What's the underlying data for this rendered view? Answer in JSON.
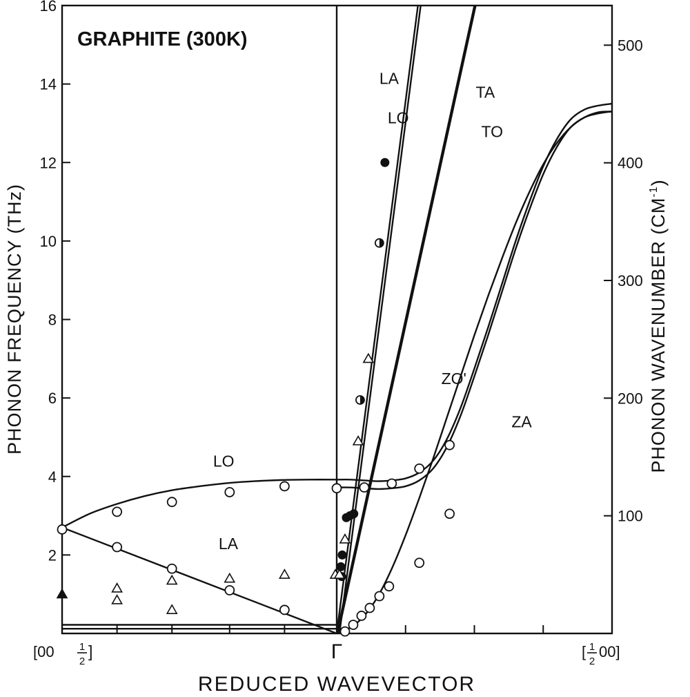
{
  "chart_data": {
    "type": "line",
    "title": "GRAPHITE (300K)",
    "xlabel": "REDUCED WAVEVECTOR",
    "ylabel": "PHONON FREQUENCY (THz)",
    "ylabel_right_main": "PHONON WAVENUMBER",
    "ylabel_right_unit": "(CM",
    "ylabel_right_sup": "-1",
    "ylabel_right_close": ")",
    "x_tick_labels": [
      "[00",
      "Γ",
      "[",
      "00]"
    ],
    "x_frac": {
      "num": "1",
      "den": "2"
    },
    "ylim": [
      0,
      16
    ],
    "y_ticks": [
      2,
      4,
      6,
      8,
      10,
      12,
      14,
      16
    ],
    "right_ticks_cm": [
      100,
      200,
      300,
      400,
      500
    ],
    "thz_per_cm": 0.02998,
    "left_x_range": [
      0,
      1
    ],
    "right_x_range": [
      0,
      1
    ],
    "branch_labels": [
      {
        "text": "LO",
        "side": "left",
        "x": 0.55,
        "y": 4.25
      },
      {
        "text": "LA",
        "side": "left",
        "x": 0.57,
        "y": 2.15
      },
      {
        "text": "LA",
        "side": "right",
        "x": 0.155,
        "y": 14.0
      },
      {
        "text": "LO",
        "side": "right",
        "x": 0.185,
        "y": 13.0
      },
      {
        "text": "TA",
        "side": "right",
        "x": 0.505,
        "y": 13.65
      },
      {
        "text": "TO",
        "side": "right",
        "x": 0.525,
        "y": 12.65
      },
      {
        "text": "ZO'",
        "side": "right",
        "x": 0.38,
        "y": 6.35
      },
      {
        "text": "ZA",
        "side": "right",
        "x": 0.635,
        "y": 5.25
      }
    ],
    "series": [
      {
        "name": "LO",
        "side": "left",
        "x": [
          0,
          0.1,
          0.2,
          0.3,
          0.4,
          0.5,
          0.6,
          0.7,
          0.8,
          0.9,
          1.0
        ],
        "y": [
          2.7,
          3.05,
          3.3,
          3.5,
          3.65,
          3.75,
          3.83,
          3.88,
          3.91,
          3.92,
          3.92
        ]
      },
      {
        "name": "LA",
        "side": "left",
        "x": [
          0,
          1.0
        ],
        "y": [
          2.7,
          0.0
        ]
      },
      {
        "name": "",
        "side": "left",
        "x": [
          0,
          1.0
        ],
        "y": [
          0.22,
          0.22
        ]
      },
      {
        "name": "",
        "side": "left",
        "x": [
          0,
          1.0
        ],
        "y": [
          0.12,
          0.12
        ]
      },
      {
        "name": "LA",
        "side": "right",
        "x": [
          0,
          0.295
        ],
        "y": [
          0,
          16
        ]
      },
      {
        "name": "LO",
        "side": "right",
        "x": [
          0.01,
          0.305
        ],
        "y": [
          0,
          16
        ]
      },
      {
        "name": "TA",
        "side": "right",
        "x": [
          0,
          0.5
        ],
        "y": [
          0,
          16
        ]
      },
      {
        "name": "TO",
        "side": "right",
        "x": [
          0.005,
          0.505
        ],
        "y": [
          0,
          16
        ]
      },
      {
        "name": "ZO'",
        "side": "right",
        "x": [
          0,
          0.05,
          0.1,
          0.15,
          0.2,
          0.25,
          0.3,
          0.35,
          0.4,
          0.45,
          0.5,
          0.55,
          0.6,
          0.65,
          0.7,
          0.75,
          0.8,
          0.85,
          0.9,
          0.95,
          1.0
        ],
        "y": [
          3.92,
          3.92,
          3.9,
          3.88,
          3.9,
          3.95,
          4.1,
          4.4,
          4.95,
          5.75,
          6.75,
          7.8,
          8.9,
          10.0,
          11.0,
          11.9,
          12.6,
          13.1,
          13.35,
          13.45,
          13.5
        ]
      },
      {
        "name": "ZA",
        "side": "right",
        "x": [
          0,
          0.05,
          0.1,
          0.15,
          0.2,
          0.25,
          0.3,
          0.35,
          0.4,
          0.45,
          0.5,
          0.55,
          0.6,
          0.65,
          0.7,
          0.75,
          0.8,
          0.85,
          0.9,
          0.95,
          1.0
        ],
        "y": [
          0.0,
          0.15,
          0.45,
          0.95,
          1.65,
          2.5,
          3.45,
          4.45,
          5.5,
          6.55,
          7.6,
          8.6,
          9.55,
          10.45,
          11.25,
          11.95,
          12.5,
          12.9,
          13.15,
          13.28,
          13.3
        ]
      },
      {
        "name": "",
        "side": "right",
        "x": [
          0,
          0.05,
          0.1,
          0.15,
          0.2,
          0.25,
          0.3,
          0.35,
          0.4,
          0.45,
          0.5,
          0.55,
          0.6,
          0.65,
          0.7,
          0.75,
          0.8,
          0.85,
          0.9,
          0.95,
          1.0
        ],
        "y": [
          3.92,
          3.92,
          3.9,
          3.88,
          3.9,
          3.95,
          4.1,
          4.4,
          4.95,
          5.75,
          6.75,
          7.8,
          8.9,
          10.0,
          11.0,
          11.9,
          12.6,
          13.1,
          13.35,
          13.45,
          13.5
        ],
        "offset": -0.2
      }
    ],
    "markers": [
      {
        "side": "left",
        "shape": "circle",
        "x": 0.0,
        "y": 2.65
      },
      {
        "side": "left",
        "shape": "circle",
        "x": 0.2,
        "y": 3.1
      },
      {
        "side": "left",
        "shape": "circle",
        "x": 0.4,
        "y": 3.35
      },
      {
        "side": "left",
        "shape": "circle",
        "x": 0.61,
        "y": 3.6
      },
      {
        "side": "left",
        "shape": "circle",
        "x": 0.81,
        "y": 3.75
      },
      {
        "side": "left",
        "shape": "circle",
        "x": 0.2,
        "y": 2.2
      },
      {
        "side": "left",
        "shape": "circle",
        "x": 0.4,
        "y": 1.65
      },
      {
        "side": "left",
        "shape": "circle",
        "x": 0.61,
        "y": 1.1
      },
      {
        "side": "left",
        "shape": "circle",
        "x": 0.81,
        "y": 0.6
      },
      {
        "side": "left",
        "shape": "triangle",
        "x": 0.2,
        "y": 1.15
      },
      {
        "side": "left",
        "shape": "triangle",
        "x": 0.2,
        "y": 0.85
      },
      {
        "side": "left",
        "shape": "triangle",
        "x": 0.4,
        "y": 1.35
      },
      {
        "side": "left",
        "shape": "triangle",
        "x": 0.4,
        "y": 0.6
      },
      {
        "side": "left",
        "shape": "triangle",
        "x": 0.61,
        "y": 1.4
      },
      {
        "side": "left",
        "shape": "triangle",
        "x": 0.81,
        "y": 1.5
      },
      {
        "side": "left",
        "shape": "filled-triangle",
        "x": 0.0,
        "y": 1.0
      },
      {
        "side": "left",
        "shape": "triangle",
        "x": 0.995,
        "y": 1.5
      },
      {
        "side": "right",
        "shape": "circle",
        "x": 0.0,
        "y": 3.7
      },
      {
        "side": "right",
        "shape": "circle",
        "x": 0.1,
        "y": 3.72
      },
      {
        "side": "right",
        "shape": "circle",
        "x": 0.2,
        "y": 3.82
      },
      {
        "side": "right",
        "shape": "circle",
        "x": 0.3,
        "y": 4.2
      },
      {
        "side": "right",
        "shape": "circle",
        "x": 0.41,
        "y": 4.8
      },
      {
        "side": "right",
        "shape": "circle",
        "x": 0.03,
        "y": 0.05
      },
      {
        "side": "right",
        "shape": "circle",
        "x": 0.06,
        "y": 0.22
      },
      {
        "side": "right",
        "shape": "circle",
        "x": 0.09,
        "y": 0.45
      },
      {
        "side": "right",
        "shape": "circle",
        "x": 0.12,
        "y": 0.65
      },
      {
        "side": "right",
        "shape": "circle",
        "x": 0.155,
        "y": 0.95
      },
      {
        "side": "right",
        "shape": "circle",
        "x": 0.19,
        "y": 1.2
      },
      {
        "side": "right",
        "shape": "circle",
        "x": 0.3,
        "y": 1.8
      },
      {
        "side": "right",
        "shape": "circle",
        "x": 0.41,
        "y": 3.05
      },
      {
        "side": "right",
        "shape": "filled-circle",
        "x": 0.035,
        "y": 2.95
      },
      {
        "side": "right",
        "shape": "filled-circle",
        "x": 0.048,
        "y": 3.0
      },
      {
        "side": "right",
        "shape": "filled-circle",
        "x": 0.062,
        "y": 3.05
      },
      {
        "side": "right",
        "shape": "filled-circle",
        "x": 0.015,
        "y": 1.7
      },
      {
        "side": "right",
        "shape": "filled-circle",
        "x": 0.018,
        "y": 1.45
      },
      {
        "side": "right",
        "shape": "filled-circle",
        "x": 0.02,
        "y": 2.0
      },
      {
        "side": "right",
        "shape": "filled-circle",
        "x": 0.175,
        "y": 12.0
      },
      {
        "side": "right",
        "shape": "half-circle",
        "x": 0.155,
        "y": 9.95
      },
      {
        "side": "right",
        "shape": "half-circle",
        "x": 0.085,
        "y": 5.95
      },
      {
        "side": "right",
        "shape": "triangle",
        "x": 0.115,
        "y": 7.0
      },
      {
        "side": "right",
        "shape": "triangle",
        "x": 0.078,
        "y": 4.9
      },
      {
        "side": "right",
        "shape": "triangle",
        "x": 0.03,
        "y": 2.4
      },
      {
        "side": "right",
        "shape": "triangle",
        "x": 0.01,
        "y": 1.5
      }
    ]
  }
}
